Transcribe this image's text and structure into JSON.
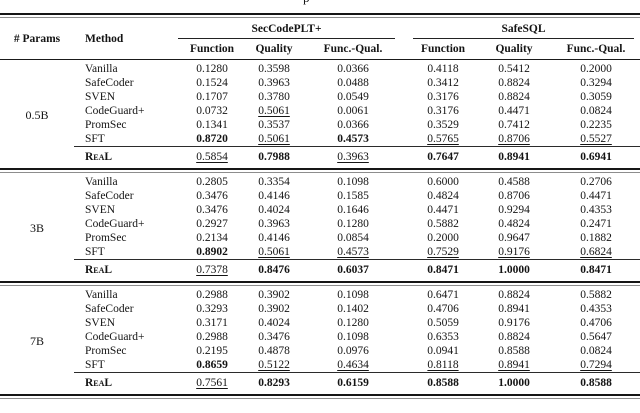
{
  "page": {
    "caption_fragment": "p"
  },
  "table": {
    "header": {
      "params": "# Params",
      "method": "Method",
      "groups": [
        {
          "label": "SecCodePLT+",
          "cols": [
            "Function",
            "Quality",
            "Func.-Qual."
          ]
        },
        {
          "label": "SafeSQL",
          "cols": [
            "Function",
            "Quality",
            "Func.-Qual."
          ]
        }
      ]
    },
    "groups": [
      {
        "params": "0.5B",
        "rows": [
          {
            "method": "Vanilla",
            "values": [
              "0.1280",
              "0.3598",
              "0.0366",
              "0.4118",
              "0.5412",
              "0.2000"
            ],
            "styles": [
              "",
              "",
              "",
              "",
              "",
              ""
            ]
          },
          {
            "method": "SafeCoder",
            "values": [
              "0.1524",
              "0.3963",
              "0.0488",
              "0.3412",
              "0.8824",
              "0.3294"
            ],
            "styles": [
              "",
              "",
              "",
              "",
              "",
              ""
            ]
          },
          {
            "method": "SVEN",
            "values": [
              "0.1707",
              "0.3780",
              "0.0549",
              "0.3176",
              "0.8824",
              "0.3059"
            ],
            "styles": [
              "",
              "",
              "",
              "",
              "",
              ""
            ]
          },
          {
            "method": "CodeGuard+",
            "values": [
              "0.0732",
              "0.5061",
              "0.0061",
              "0.3176",
              "0.4471",
              "0.0824"
            ],
            "styles": [
              "",
              "u",
              "",
              "",
              "",
              ""
            ]
          },
          {
            "method": "PromSec",
            "values": [
              "0.1341",
              "0.3537",
              "0.0366",
              "0.3529",
              "0.7412",
              "0.2235"
            ],
            "styles": [
              "",
              "",
              "",
              "",
              "",
              ""
            ]
          },
          {
            "method": "SFT",
            "values": [
              "0.8720",
              "0.5061",
              "0.4573",
              "0.5765",
              "0.8706",
              "0.5527"
            ],
            "styles": [
              "b",
              "u",
              "b",
              "u",
              "u",
              "u"
            ]
          },
          {
            "method": "ReaL",
            "real": true,
            "values": [
              "0.5854",
              "0.7988",
              "0.3963",
              "0.7647",
              "0.8941",
              "0.6941"
            ],
            "styles": [
              "u",
              "b",
              "u",
              "b",
              "b",
              "b"
            ]
          }
        ]
      },
      {
        "params": "3B",
        "rows": [
          {
            "method": "Vanilla",
            "values": [
              "0.2805",
              "0.3354",
              "0.1098",
              "0.6000",
              "0.4588",
              "0.2706"
            ],
            "styles": [
              "",
              "",
              "",
              "",
              "",
              ""
            ]
          },
          {
            "method": "SafeCoder",
            "values": [
              "0.3476",
              "0.4146",
              "0.1585",
              "0.4824",
              "0.8706",
              "0.4471"
            ],
            "styles": [
              "",
              "",
              "",
              "",
              "",
              ""
            ]
          },
          {
            "method": "SVEN",
            "values": [
              "0.3476",
              "0.4024",
              "0.1646",
              "0.4471",
              "0.9294",
              "0.4353"
            ],
            "styles": [
              "",
              "",
              "",
              "",
              "",
              ""
            ]
          },
          {
            "method": "CodeGuard+",
            "values": [
              "0.2927",
              "0.3963",
              "0.1280",
              "0.5882",
              "0.4824",
              "0.2471"
            ],
            "styles": [
              "",
              "",
              "",
              "",
              "",
              ""
            ]
          },
          {
            "method": "PromSec",
            "values": [
              "0.2134",
              "0.4146",
              "0.0854",
              "0.2000",
              "0.9647",
              "0.1882"
            ],
            "styles": [
              "",
              "",
              "",
              "",
              "",
              ""
            ]
          },
          {
            "method": "SFT",
            "values": [
              "0.8902",
              "0.5061",
              "0.4573",
              "0.7529",
              "0.9176",
              "0.6824"
            ],
            "styles": [
              "b",
              "u",
              "u",
              "u",
              "u",
              "u"
            ]
          },
          {
            "method": "ReaL",
            "real": true,
            "values": [
              "0.7378",
              "0.8476",
              "0.6037",
              "0.8471",
              "1.0000",
              "0.8471"
            ],
            "styles": [
              "u",
              "b",
              "b",
              "b",
              "b",
              "b"
            ]
          }
        ]
      },
      {
        "params": "7B",
        "rows": [
          {
            "method": "Vanilla",
            "values": [
              "0.2988",
              "0.3902",
              "0.1098",
              "0.6471",
              "0.8824",
              "0.5882"
            ],
            "styles": [
              "",
              "",
              "",
              "",
              "",
              ""
            ]
          },
          {
            "method": "SafeCoder",
            "values": [
              "0.3293",
              "0.3902",
              "0.1402",
              "0.4706",
              "0.8941",
              "0.4353"
            ],
            "styles": [
              "",
              "",
              "",
              "",
              "",
              ""
            ]
          },
          {
            "method": "SVEN",
            "values": [
              "0.3171",
              "0.4024",
              "0.1280",
              "0.5059",
              "0.9176",
              "0.4706"
            ],
            "styles": [
              "",
              "",
              "",
              "",
              "",
              ""
            ]
          },
          {
            "method": "CodeGuard+",
            "values": [
              "0.2988",
              "0.3476",
              "0.1098",
              "0.6353",
              "0.8824",
              "0.5647"
            ],
            "styles": [
              "",
              "",
              "",
              "",
              "",
              ""
            ]
          },
          {
            "method": "PromSec",
            "values": [
              "0.2195",
              "0.4878",
              "0.0976",
              "0.0941",
              "0.8588",
              "0.0824"
            ],
            "styles": [
              "",
              "",
              "",
              "",
              "",
              ""
            ]
          },
          {
            "method": "SFT",
            "values": [
              "0.8659",
              "0.5122",
              "0.4634",
              "0.8118",
              "0.8941",
              "0.7294"
            ],
            "styles": [
              "b",
              "u",
              "u",
              "u",
              "u",
              "u"
            ]
          },
          {
            "method": "ReaL",
            "real": true,
            "values": [
              "0.7561",
              "0.8293",
              "0.6159",
              "0.8588",
              "1.0000",
              "0.8588"
            ],
            "styles": [
              "u",
              "b",
              "b",
              "b",
              "b",
              "b"
            ]
          }
        ]
      }
    ]
  }
}
